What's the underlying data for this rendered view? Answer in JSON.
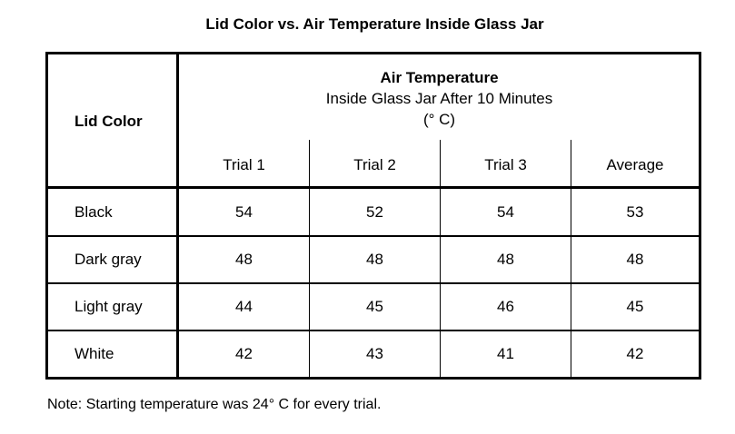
{
  "title": "Lid Color vs. Air Temperature Inside Glass Jar",
  "table": {
    "row_header_label": "Lid Color",
    "group_header": {
      "line1": "Air Temperature",
      "line2": "Inside Glass Jar After 10 Minutes",
      "line3": "(° C)"
    },
    "columns": [
      "Trial 1",
      "Trial 2",
      "Trial 3",
      "Average"
    ],
    "rows": [
      {
        "label": "Black",
        "values": [
          "54",
          "52",
          "54",
          "53"
        ]
      },
      {
        "label": "Dark gray",
        "values": [
          "48",
          "48",
          "48",
          "48"
        ]
      },
      {
        "label": "Light gray",
        "values": [
          "44",
          "45",
          "46",
          "45"
        ]
      },
      {
        "label": "White",
        "values": [
          "42",
          "43",
          "41",
          "42"
        ]
      }
    ]
  },
  "note": {
    "prefix": "Note:",
    "text": " Starting temperature was 24° C for every trial."
  }
}
